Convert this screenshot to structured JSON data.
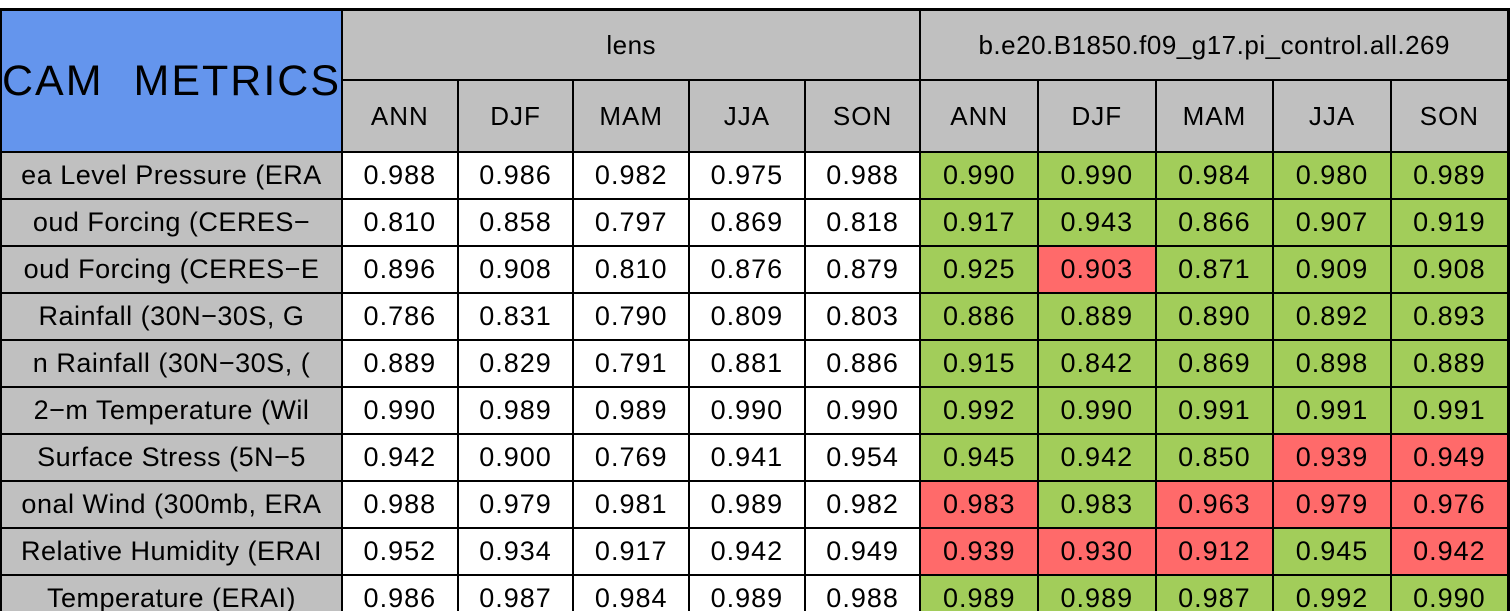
{
  "colors": {
    "title_bg": "#6495ED",
    "header_bg": "#C0C0C0",
    "plain_cell_bg": "#FFFFFF",
    "good_green": "#A2CD5A",
    "bad_red": "#FF6A6A",
    "border": "#000000",
    "text": "#000000"
  },
  "chart_data": {
    "type": "table",
    "title": "CAM METRICS",
    "column_groups": [
      {
        "label": "lens"
      },
      {
        "label": "b.e20.B1850.f09_g17.pi_control.all.269"
      }
    ],
    "season_columns": [
      "ANN",
      "DJF",
      "MAM",
      "JJA",
      "SON"
    ],
    "rows": [
      {
        "label": "ea Level Pressure (ERA",
        "lens": [
          "0.988",
          "0.986",
          "0.982",
          "0.975",
          "0.988"
        ],
        "control": [
          "0.990",
          "0.990",
          "0.984",
          "0.980",
          "0.989"
        ],
        "control_status": [
          "good",
          "good",
          "good",
          "good",
          "good"
        ]
      },
      {
        "label": "oud Forcing (CERES−",
        "lens": [
          "0.810",
          "0.858",
          "0.797",
          "0.869",
          "0.818"
        ],
        "control": [
          "0.917",
          "0.943",
          "0.866",
          "0.907",
          "0.919"
        ],
        "control_status": [
          "good",
          "good",
          "good",
          "good",
          "good"
        ]
      },
      {
        "label": "oud Forcing (CERES−E",
        "lens": [
          "0.896",
          "0.908",
          "0.810",
          "0.876",
          "0.879"
        ],
        "control": [
          "0.925",
          "0.903",
          "0.871",
          "0.909",
          "0.908"
        ],
        "control_status": [
          "good",
          "bad",
          "good",
          "good",
          "good"
        ]
      },
      {
        "label": "Rainfall (30N−30S, G",
        "lens": [
          "0.786",
          "0.831",
          "0.790",
          "0.809",
          "0.803"
        ],
        "control": [
          "0.886",
          "0.889",
          "0.890",
          "0.892",
          "0.893"
        ],
        "control_status": [
          "good",
          "good",
          "good",
          "good",
          "good"
        ]
      },
      {
        "label": "n Rainfall (30N−30S, (",
        "lens": [
          "0.889",
          "0.829",
          "0.791",
          "0.881",
          "0.886"
        ],
        "control": [
          "0.915",
          "0.842",
          "0.869",
          "0.898",
          "0.889"
        ],
        "control_status": [
          "good",
          "good",
          "good",
          "good",
          "good"
        ]
      },
      {
        "label": "2−m Temperature (Wil",
        "lens": [
          "0.990",
          "0.989",
          "0.989",
          "0.990",
          "0.990"
        ],
        "control": [
          "0.992",
          "0.990",
          "0.991",
          "0.991",
          "0.991"
        ],
        "control_status": [
          "good",
          "good",
          "good",
          "good",
          "good"
        ]
      },
      {
        "label": "Surface Stress (5N−5",
        "lens": [
          "0.942",
          "0.900",
          "0.769",
          "0.941",
          "0.954"
        ],
        "control": [
          "0.945",
          "0.942",
          "0.850",
          "0.939",
          "0.949"
        ],
        "control_status": [
          "good",
          "good",
          "good",
          "bad",
          "bad"
        ]
      },
      {
        "label": "onal Wind (300mb, ERA",
        "lens": [
          "0.988",
          "0.979",
          "0.981",
          "0.989",
          "0.982"
        ],
        "control": [
          "0.983",
          "0.983",
          "0.963",
          "0.979",
          "0.976"
        ],
        "control_status": [
          "bad",
          "good",
          "bad",
          "bad",
          "bad"
        ]
      },
      {
        "label": "Relative Humidity (ERAI",
        "lens": [
          "0.952",
          "0.934",
          "0.917",
          "0.942",
          "0.949"
        ],
        "control": [
          "0.939",
          "0.930",
          "0.912",
          "0.945",
          "0.942"
        ],
        "control_status": [
          "bad",
          "bad",
          "bad",
          "good",
          "bad"
        ]
      },
      {
        "label": "Temperature (ERAI)",
        "lens": [
          "0.986",
          "0.987",
          "0.984",
          "0.989",
          "0.988"
        ],
        "control": [
          "0.989",
          "0.989",
          "0.987",
          "0.992",
          "0.990"
        ],
        "control_status": [
          "good",
          "good",
          "good",
          "good",
          "good"
        ]
      }
    ]
  }
}
